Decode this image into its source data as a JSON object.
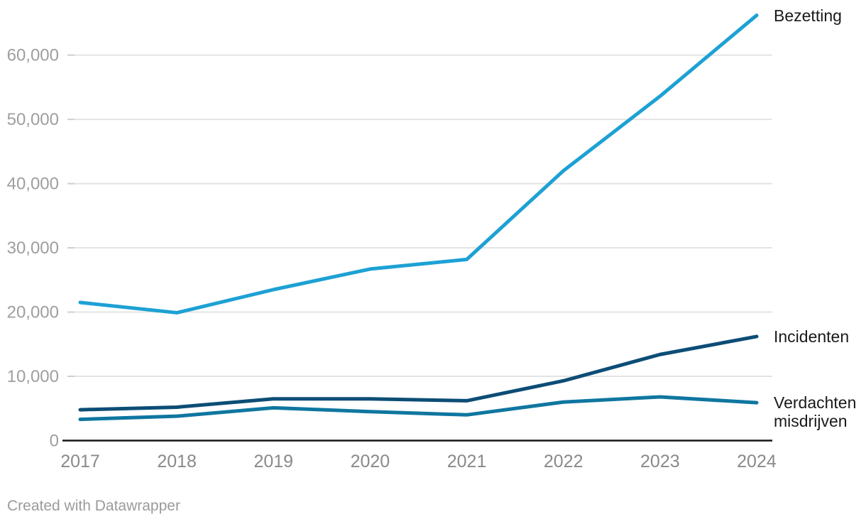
{
  "chart_data": {
    "type": "line",
    "x": [
      2017,
      2018,
      2019,
      2020,
      2021,
      2022,
      2023,
      2024
    ],
    "series": [
      {
        "name": "Bezetting",
        "color": "#1DA1D4",
        "values": [
          21500,
          19900,
          23500,
          26700,
          28200,
          42000,
          53600,
          66200
        ]
      },
      {
        "name": "Incidenten",
        "color": "#0C4D76",
        "values": [
          4800,
          5200,
          6500,
          6500,
          6200,
          9300,
          13400,
          16200
        ]
      },
      {
        "name": "Verdachten misdrijven",
        "color": "#0F76A0",
        "values": [
          3300,
          3800,
          5100,
          4500,
          4000,
          6000,
          6800,
          5900
        ]
      }
    ],
    "ylim": [
      0,
      60000
    ],
    "yticks": [
      0,
      10000,
      20000,
      30000,
      40000,
      50000,
      60000
    ],
    "ytick_labels": [
      "0",
      "10,000",
      "20,000",
      "30,000",
      "40,000",
      "50,000",
      "60,000"
    ],
    "xtick_labels": [
      "2017",
      "2018",
      "2019",
      "2020",
      "2021",
      "2022",
      "2023",
      "2024"
    ],
    "grid": true,
    "legend_position": "right-of-line-ends",
    "colors": {
      "gridline": "#e4e4e4",
      "gridline_tick": "#d0d0d0",
      "axis_line": "#161616",
      "ytick_text": "#9e9e9e",
      "xtick_text": "#8a8a8a",
      "label_text": "#1a1a1a"
    }
  },
  "footer": {
    "credit": "Created with Datawrapper"
  }
}
